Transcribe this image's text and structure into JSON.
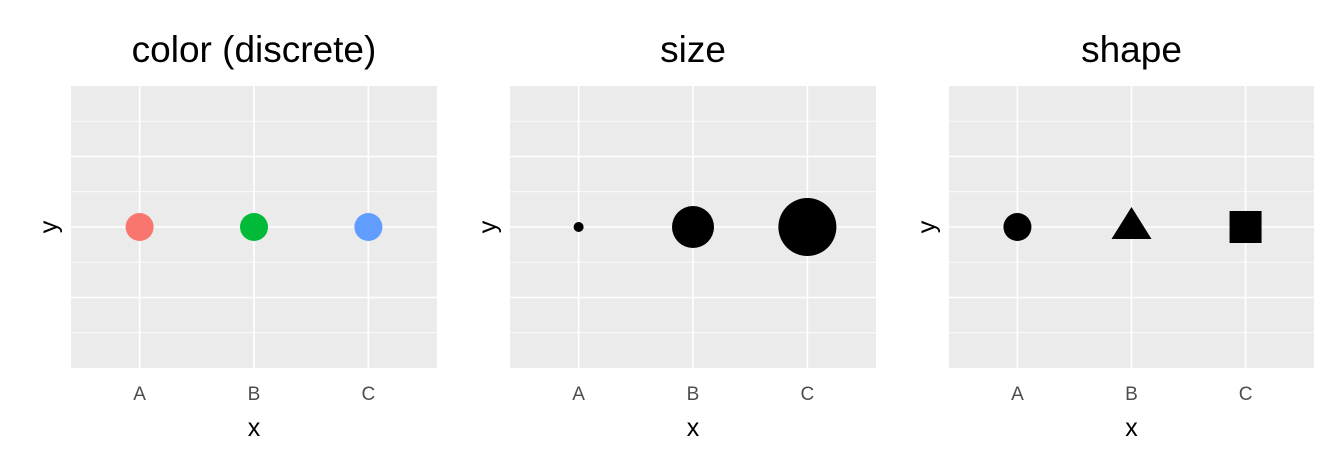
{
  "chart_data": [
    {
      "type": "scatter",
      "title": "color (discrete)",
      "xlabel": "x",
      "ylabel": "y",
      "categories": [
        "A",
        "B",
        "C"
      ],
      "points": [
        {
          "x": "A",
          "color": "#F8766D"
        },
        {
          "x": "B",
          "color": "#00BA38"
        },
        {
          "x": "C",
          "color": "#619CFF"
        }
      ],
      "grid": true,
      "y_ticks_labeled": false
    },
    {
      "type": "scatter",
      "title": "size",
      "xlabel": "x",
      "ylabel": "y",
      "categories": [
        "A",
        "B",
        "C"
      ],
      "points": [
        {
          "x": "A",
          "size": 1,
          "color": "#000000"
        },
        {
          "x": "B",
          "size": 2,
          "color": "#000000"
        },
        {
          "x": "C",
          "size": 3,
          "color": "#000000"
        }
      ],
      "grid": true,
      "y_ticks_labeled": false
    },
    {
      "type": "scatter",
      "title": "shape",
      "xlabel": "x",
      "ylabel": "y",
      "categories": [
        "A",
        "B",
        "C"
      ],
      "points": [
        {
          "x": "A",
          "shape": "circle",
          "color": "#000000"
        },
        {
          "x": "B",
          "shape": "triangle",
          "color": "#000000"
        },
        {
          "x": "C",
          "shape": "square",
          "color": "#000000"
        }
      ],
      "grid": true,
      "y_ticks_labeled": false
    }
  ],
  "colors": {
    "panel_background": "#EBEBEB",
    "grid_line": "#FFFFFF",
    "tick_text": "#4D4D4D"
  }
}
